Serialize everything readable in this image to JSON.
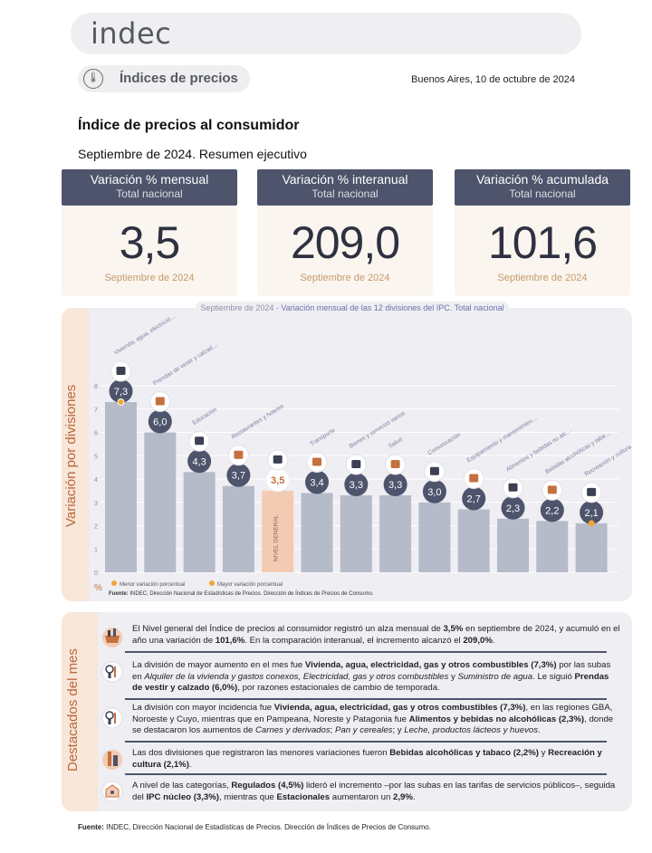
{
  "header": {
    "logo": "indec",
    "section": "Índices de precios",
    "city_date": "Buenos Aires, 10 de octubre de 2024"
  },
  "title": "Índice de precios al consumidor",
  "subtitle": "Septiembre de 2024. Resumen ejecutivo",
  "cards": [
    {
      "label": "Variación % mensual",
      "sub": "Total nacional",
      "value": "3,5",
      "period": "Septiembre de 2024"
    },
    {
      "label": "Variación % interanual",
      "sub": "Total nacional",
      "value": "209,0",
      "period": "Septiembre de 2024"
    },
    {
      "label": "Variación % acumulada",
      "sub": "Total nacional",
      "value": "101,6",
      "period": "Septiembre de 2024"
    }
  ],
  "chart_section_label": "Variación por divisiones",
  "chart_title_prefix": "Septiembre de 2024 - ",
  "chart_title_main": "Variación mensual de las 12 divisiones del IPC. Total nacional",
  "chart_data": {
    "type": "bar",
    "ylabel": "%",
    "ylim": [
      0,
      8
    ],
    "yticks": [
      "0",
      "1",
      "2",
      "3",
      "4",
      "5",
      "6",
      "7",
      "8"
    ],
    "categories": [
      "Vivienda, agua, electricidad, gas y otros combustibles",
      "Prendas de vestir y calzado",
      "Educación",
      "Restaurantes y hoteles",
      "NIVEL GENERAL",
      "Transporte",
      "Bienes y servicios varios",
      "Salud",
      "Comunicación",
      "Equipamiento y mantenimiento del hogar",
      "Alimentos y bebidas no alcohólicas",
      "Bebidas alcohólicas y tabaco",
      "Recreación y cultura"
    ],
    "values": [
      7.3,
      6.0,
      4.3,
      3.7,
      3.5,
      3.4,
      3.3,
      3.3,
      3.0,
      2.7,
      2.3,
      2.2,
      2.1
    ],
    "value_labels": [
      "7,3",
      "6,0",
      "4,3",
      "3,7",
      "3,5",
      "3,4",
      "3,3",
      "3,3",
      "3,0",
      "2,7",
      "2,3",
      "2,2",
      "2,1"
    ],
    "highlight_category": "NIVEL GENERAL",
    "bar_color": "#b6bbc9",
    "highlight_color": "#f3cbb2",
    "legend": [
      {
        "label": "Menor variación porcentual",
        "color": "#f2a534"
      },
      {
        "label": "Mayor variación porcentual",
        "color": "#f2a534"
      }
    ],
    "source_bold": "Fuente:",
    "source": " INDEC, Dirección Nacional de Estadísticas de Precios. Dirección de Índices de Precios de Consumo."
  },
  "highlights_label": "Destacados del mes",
  "highlights": [
    {
      "icon": "basket-icon"
    },
    {
      "icon": "bulb-icon"
    },
    {
      "icon": "bulb-icon"
    },
    {
      "icon": "bottle-icon"
    },
    {
      "icon": "tag-icon"
    }
  ],
  "footer_bold": "Fuente:",
  "footer": " INDEC, Dirección Nacional de Estadísticas de Precios. Dirección de Índices de Precios de Consumo.",
  "colors": {
    "navy": "#4e546c",
    "accent": "#c4703f",
    "panel": "#efeef3",
    "side": "#f8e6d8"
  }
}
